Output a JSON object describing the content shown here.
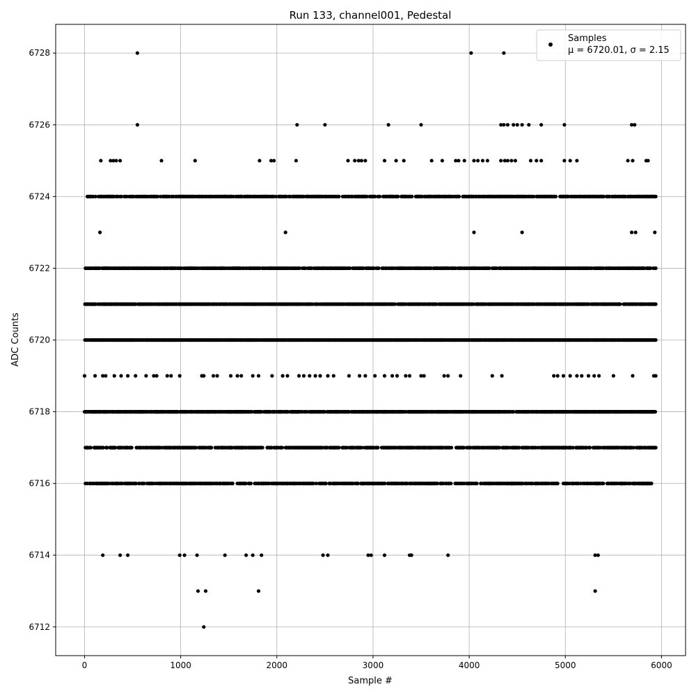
{
  "chart_data": {
    "type": "scatter",
    "title": "Run 133, channel001, Pedestal",
    "xlabel": "Sample #",
    "ylabel": "ADC Counts",
    "xlim": [
      -300,
      6250
    ],
    "ylim": [
      6711.2,
      6728.8
    ],
    "xticks": [
      0,
      1000,
      2000,
      3000,
      4000,
      5000,
      6000
    ],
    "yticks": [
      6712,
      6714,
      6716,
      6718,
      6720,
      6722,
      6724,
      6726,
      6728
    ],
    "grid": true,
    "legend": {
      "position": "top-right",
      "label": "Samples",
      "stats": "μ = 6720.01, σ = 2.15"
    },
    "series": [
      {
        "name": "Samples",
        "color": "#000000",
        "marker": "circle",
        "rows": [
          {
            "y": 6728,
            "x": [
              550,
              4020,
              4360
            ]
          },
          {
            "y": 6726,
            "x": [
              550,
              2210,
              2500,
              3160,
              3500,
              4330,
              4360,
              4400,
              4460,
              4500,
              4550,
              4620,
              4750,
              4990,
              5690,
              5720
            ]
          },
          {
            "y": 6725,
            "x": [
              170,
              270,
              300,
              330,
              370,
              800,
              1150,
              1820,
              1940,
              1970,
              2200,
              2740,
              2810,
              2850,
              2880,
              2920,
              3120,
              3240,
              3320,
              3610,
              3720,
              3860,
              3890,
              3950,
              4050,
              4090,
              4140,
              4190,
              4330,
              4370,
              4400,
              4440,
              4480,
              4640,
              4700,
              4750,
              4990,
              5050,
              5120,
              5650,
              5700,
              5840,
              5860
            ]
          },
          {
            "y": 6723,
            "x": [
              160,
              2090,
              4050,
              4550,
              5690,
              5730,
              5930
            ]
          },
          {
            "y": 6719,
            "x": [
              0,
              110,
              190,
              220,
              310,
              380,
              450,
              530,
              640,
              720,
              750,
              860,
              900,
              990,
              1220,
              1240,
              1340,
              1380,
              1520,
              1590,
              1630,
              1750,
              1810,
              1950,
              2060,
              2110,
              2230,
              2280,
              2340,
              2400,
              2450,
              2530,
              2590,
              2750,
              2860,
              2920,
              3020,
              3120,
              3200,
              3250,
              3340,
              3380,
              3500,
              3530,
              3740,
              3780,
              3910,
              4240,
              4340,
              4880,
              4920,
              4980,
              5050,
              5120,
              5170,
              5240,
              5300,
              5350,
              5500,
              5700,
              5920,
              5940
            ]
          },
          {
            "y": 6714,
            "x": [
              190,
              370,
              450,
              990,
              1040,
              1170,
              1460,
              1680,
              1750,
              1840,
              2480,
              2530,
              2950,
              2980,
              3120,
              3380,
              3400,
              3780,
              5310,
              5340
            ]
          },
          {
            "y": 6713,
            "x": [
              1180,
              1260,
              1810,
              5310
            ]
          },
          {
            "y": 6712,
            "x": [
              1240
            ]
          }
        ],
        "bands": [
          {
            "y": 6724,
            "x_start": 30,
            "x_end": 5940,
            "density": 0.55
          },
          {
            "y": 6722,
            "x_start": 10,
            "x_end": 5940,
            "density": 0.6
          },
          {
            "y": 6721,
            "x_start": 0,
            "x_end": 5940,
            "density": 0.65
          },
          {
            "y": 6720,
            "x_start": 0,
            "x_end": 5940,
            "density": 0.85
          },
          {
            "y": 6718,
            "x_start": 0,
            "x_end": 5940,
            "density": 0.75
          },
          {
            "y": 6717,
            "x_start": 10,
            "x_end": 5940,
            "density": 0.5
          },
          {
            "y": 6716,
            "x_start": 0,
            "x_end": 5900,
            "density": 0.45
          }
        ]
      }
    ]
  }
}
